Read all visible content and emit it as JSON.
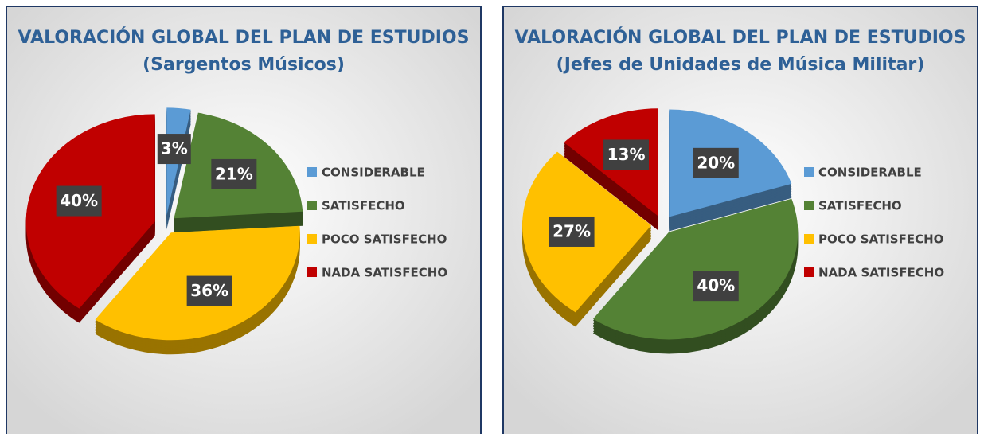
{
  "chart_data": [
    {
      "type": "pie",
      "title": "VALORACIÓN GLOBAL DEL PLAN DE ESTUDIOS",
      "subtitle": "(Sargentos Músicos)",
      "categories": [
        "CONSIDERABLE",
        "SATISFECHO",
        "POCO SATISFECHO",
        "NADA SATISFECHO"
      ],
      "values": [
        3,
        21,
        36,
        40
      ],
      "value_labels": [
        "3%",
        "21%",
        "36%",
        "40%"
      ],
      "colors": [
        "#5b9bd5",
        "#548235",
        "#ffc000",
        "#c00000"
      ],
      "legend": "right"
    },
    {
      "type": "pie",
      "title": "VALORACIÓN GLOBAL DEL PLAN DE ESTUDIOS",
      "subtitle": "(Jefes de Unidades de Música Militar)",
      "categories": [
        "CONSIDERABLE",
        "SATISFECHO",
        "POCO SATISFECHO",
        "NADA SATISFECHO"
      ],
      "values": [
        20,
        40,
        27,
        13
      ],
      "value_labels": [
        "20%",
        "40%",
        "27%",
        "13%"
      ],
      "colors": [
        "#5b9bd5",
        "#548235",
        "#ffc000",
        "#c00000"
      ],
      "legend": "right"
    }
  ]
}
